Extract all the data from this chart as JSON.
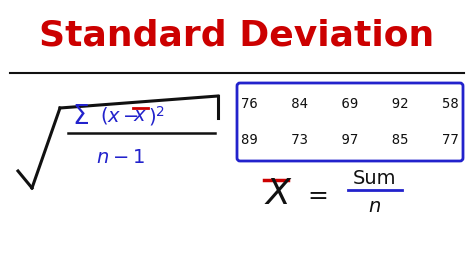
{
  "title": "Standard Deviation",
  "title_color": "#cc0000",
  "title_fontsize": 26,
  "bg_color": "#ffffff",
  "line_color": "#111111",
  "blue_color": "#2222cc",
  "red_color": "#cc0000",
  "black_color": "#111111",
  "table_row1": "76    84    69    92    58",
  "table_row2": "89    73    97    85    77",
  "figw": 4.74,
  "figh": 2.66,
  "dpi": 100
}
